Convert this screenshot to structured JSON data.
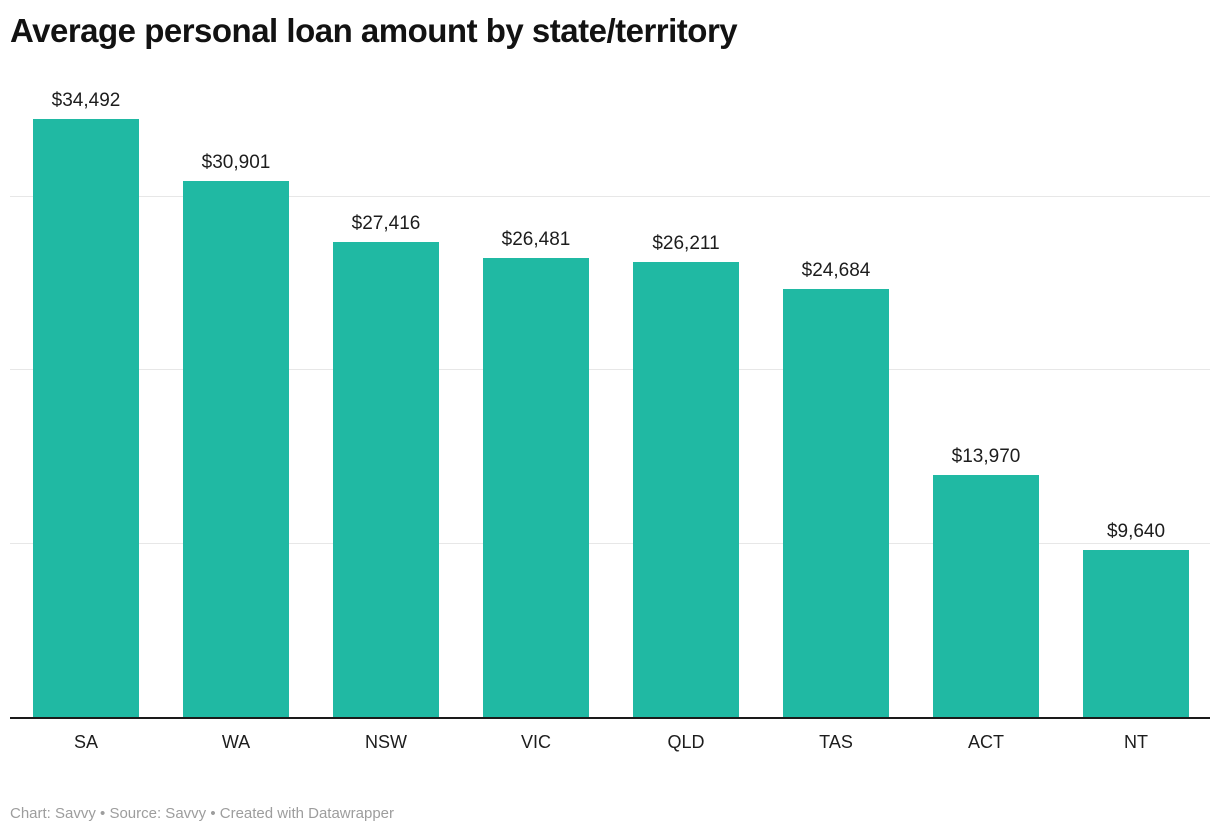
{
  "title": "Average personal loan amount by state/territory",
  "footer": {
    "text": "Chart: Savvy • Source: Savvy • Created with Datawrapper"
  },
  "chart_data": {
    "type": "bar",
    "title": "Average personal loan amount by state/territory",
    "categories": [
      "SA",
      "WA",
      "NSW",
      "VIC",
      "QLD",
      "TAS",
      "ACT",
      "NT"
    ],
    "values": [
      34492,
      30901,
      27416,
      26481,
      26211,
      24684,
      13970,
      9640
    ],
    "value_labels": [
      "$34,492",
      "$30,901",
      "$27,416",
      "$26,481",
      "$26,211",
      "$24,684",
      "$13,970",
      "$9,640"
    ],
    "xlabel": "",
    "ylabel": "",
    "ylim": [
      0,
      36000
    ],
    "gridlines": [
      10000,
      20000,
      30000
    ],
    "grid": "horizontal-only",
    "legend": "none",
    "y_tick_labels_visible": false,
    "colors": {
      "bar": "#20B9A3",
      "gridline": "#e7e7e7",
      "axis_line": "#1a1a1a",
      "title_text": "#121212",
      "label_text": "#1d1d1d",
      "footer_text": "#9d9d9d",
      "background": "#ffffff"
    }
  }
}
